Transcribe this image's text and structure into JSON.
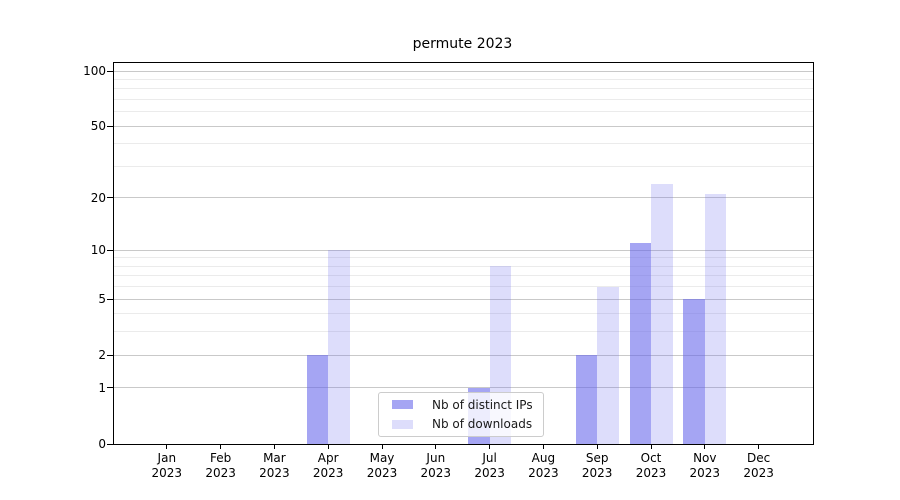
{
  "chart_data": {
    "type": "bar",
    "title": "permute 2023",
    "year": "2023",
    "months": [
      "Jan",
      "Feb",
      "Mar",
      "Apr",
      "May",
      "Jun",
      "Jul",
      "Aug",
      "Sep",
      "Oct",
      "Nov",
      "Dec"
    ],
    "series": [
      {
        "name": "Nb of distinct IPs",
        "color": "#6464eb",
        "alpha": 0.58,
        "values": [
          0,
          0,
          0,
          2,
          0,
          0,
          1,
          0,
          2,
          11,
          5,
          0
        ]
      },
      {
        "name": "Nb of downloads",
        "color": "#6464eb",
        "alpha": 0.22,
        "values": [
          0,
          0,
          0,
          10,
          0,
          0,
          8,
          0,
          6,
          24,
          21,
          0
        ]
      }
    ],
    "yscale": "log1p",
    "ylim": [
      0,
      100
    ],
    "yticks": [
      0,
      1,
      2,
      5,
      10,
      20,
      50,
      100
    ],
    "ytick_labels": [
      "0",
      "1",
      "2",
      "5",
      "10",
      "20",
      "50",
      "100"
    ],
    "minor_yticks": [
      3,
      4,
      6,
      7,
      8,
      9,
      30,
      40,
      60,
      70,
      80,
      90
    ],
    "grid": true,
    "legend_position": "lower center",
    "colors": {
      "bar_dark": "rgba(100,100,235,0.58)",
      "bar_light": "rgba(100,100,235,0.22)",
      "grid_major": "#c9c9c9",
      "grid_minor": "#ebebeb",
      "spine": "#000000",
      "background": "#ffffff"
    }
  }
}
